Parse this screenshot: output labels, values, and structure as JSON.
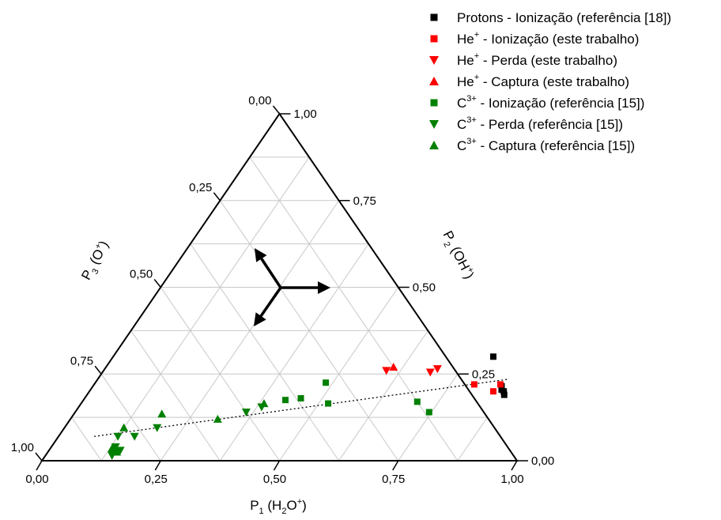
{
  "chart_data": {
    "type": "scatter",
    "subtype": "ternary",
    "axes": {
      "p1": {
        "label_main": "P",
        "label_sub": "1",
        "label_rest": " (H",
        "label_sub2": "2",
        "label_rest2": "O",
        "label_sup": "+",
        "label_end": ")",
        "ticks": [
          "0,00",
          "0,25",
          "0,50",
          "0,75",
          "1,00"
        ]
      },
      "p2": {
        "label_main": "P",
        "label_sub": "2",
        "label_rest": " (OH",
        "label_sup": "+",
        "label_end": ")",
        "ticks": [
          "0,00",
          "0,25",
          "0,50",
          "0,75",
          "1,00"
        ]
      },
      "p3": {
        "label_main": "P",
        "label_sub": "3",
        "label_rest": " (O",
        "label_sup": "+",
        "label_end": ")",
        "ticks": [
          "0,00",
          "0,25",
          "0,50",
          "0,75",
          "1,00"
        ]
      }
    },
    "grid": true,
    "grid_step": 0.125,
    "legend_position": "top-right",
    "colors": {
      "black": "#000000",
      "red": "#ff0000",
      "green": "#008000",
      "grid": "#c8c8c8"
    },
    "series": [
      {
        "name_main": "Protons - Ionização (referência [18])",
        "name_sup": "",
        "name_rest": "",
        "marker": "square",
        "color": "#000000",
        "points": [
          {
            "p1": 0.8,
            "p2": 0.3,
            "p3": -0.1
          },
          {
            "p1": 0.86,
            "p2": 0.215,
            "p3": -0.075
          },
          {
            "p1": 0.865,
            "p2": 0.205,
            "p3": -0.07
          },
          {
            "p1": 0.872,
            "p2": 0.2,
            "p3": -0.072
          },
          {
            "p1": 0.878,
            "p2": 0.19,
            "p3": -0.068
          }
        ]
      },
      {
        "name_main": "He",
        "name_sup": "+",
        "name_rest": " - Ionização (este trabalho)",
        "marker": "square",
        "color": "#ff0000",
        "points": [
          {
            "p1": 0.8,
            "p2": 0.22,
            "p3": -0.02
          },
          {
            "p1": 0.85,
            "p2": 0.2,
            "p3": -0.05
          },
          {
            "p1": 0.855,
            "p2": 0.22,
            "p3": -0.075
          }
        ]
      },
      {
        "name_main": "He",
        "name_sup": "+",
        "name_rest": " - Perda (este trabalho)",
        "marker": "triangle-down",
        "color": "#ff0000",
        "points": [
          {
            "p1": 0.595,
            "p2": 0.26,
            "p3": 0.145
          },
          {
            "p1": 0.69,
            "p2": 0.255,
            "p3": 0.055
          },
          {
            "p1": 0.7,
            "p2": 0.265,
            "p3": 0.035
          }
        ]
      },
      {
        "name_main": "He",
        "name_sup": "+",
        "name_rest": " - Captura (este trabalho)",
        "marker": "triangle-up",
        "color": "#ff0000",
        "points": [
          {
            "p1": 0.605,
            "p2": 0.27,
            "p3": 0.125
          }
        ]
      },
      {
        "name_main": "C",
        "name_sup": "3+",
        "name_rest": " - Ionização (referência [15])",
        "marker": "square",
        "color": "#008000",
        "points": [
          {
            "p1": 0.425,
            "p2": 0.175,
            "p3": 0.4
          },
          {
            "p1": 0.455,
            "p2": 0.18,
            "p3": 0.365
          },
          {
            "p1": 0.485,
            "p2": 0.225,
            "p3": 0.29
          },
          {
            "p1": 0.52,
            "p2": 0.165,
            "p3": 0.315
          },
          {
            "p1": 0.705,
            "p2": 0.17,
            "p3": 0.125
          },
          {
            "p1": 0.745,
            "p2": 0.14,
            "p3": 0.115
          }
        ]
      },
      {
        "name_main": "C",
        "name_sup": "3+",
        "name_rest": " - Perda (referência [15])",
        "marker": "triangle-down",
        "color": "#008000",
        "points": [
          {
            "p1": 0.125,
            "p2": 0.07,
            "p3": 0.805
          },
          {
            "p1": 0.135,
            "p2": 0.04,
            "p3": 0.825
          },
          {
            "p1": 0.14,
            "p2": 0.015,
            "p3": 0.845
          },
          {
            "p1": 0.15,
            "p2": 0.03,
            "p3": 0.82
          },
          {
            "p1": 0.16,
            "p2": 0.07,
            "p3": 0.77
          },
          {
            "p1": 0.195,
            "p2": 0.095,
            "p3": 0.71
          },
          {
            "p1": 0.36,
            "p2": 0.14,
            "p3": 0.5
          },
          {
            "p1": 0.385,
            "p2": 0.155,
            "p3": 0.46
          }
        ]
      },
      {
        "name_main": "C",
        "name_sup": "3+",
        "name_rest": " - Captura (referência [15])",
        "marker": "triangle-up",
        "color": "#008000",
        "points": [
          {
            "p1": 0.13,
            "p2": 0.035,
            "p3": 0.835
          },
          {
            "p1": 0.145,
            "p2": 0.025,
            "p3": 0.83
          },
          {
            "p1": 0.125,
            "p2": 0.095,
            "p3": 0.78
          },
          {
            "p1": 0.185,
            "p2": 0.135,
            "p3": 0.68
          },
          {
            "p1": 0.31,
            "p2": 0.12,
            "p3": 0.57
          },
          {
            "p1": 0.385,
            "p2": 0.165,
            "p3": 0.45
          }
        ]
      }
    ],
    "trend_line": {
      "style": "dotted",
      "start": {
        "p1": 0.075,
        "p2": 0.07,
        "p3": 0.855
      },
      "end": {
        "p1": 0.865,
        "p2": 0.235,
        "p3": -0.1
      }
    },
    "direction_arrows": [
      "p1",
      "p2",
      "p3"
    ]
  }
}
